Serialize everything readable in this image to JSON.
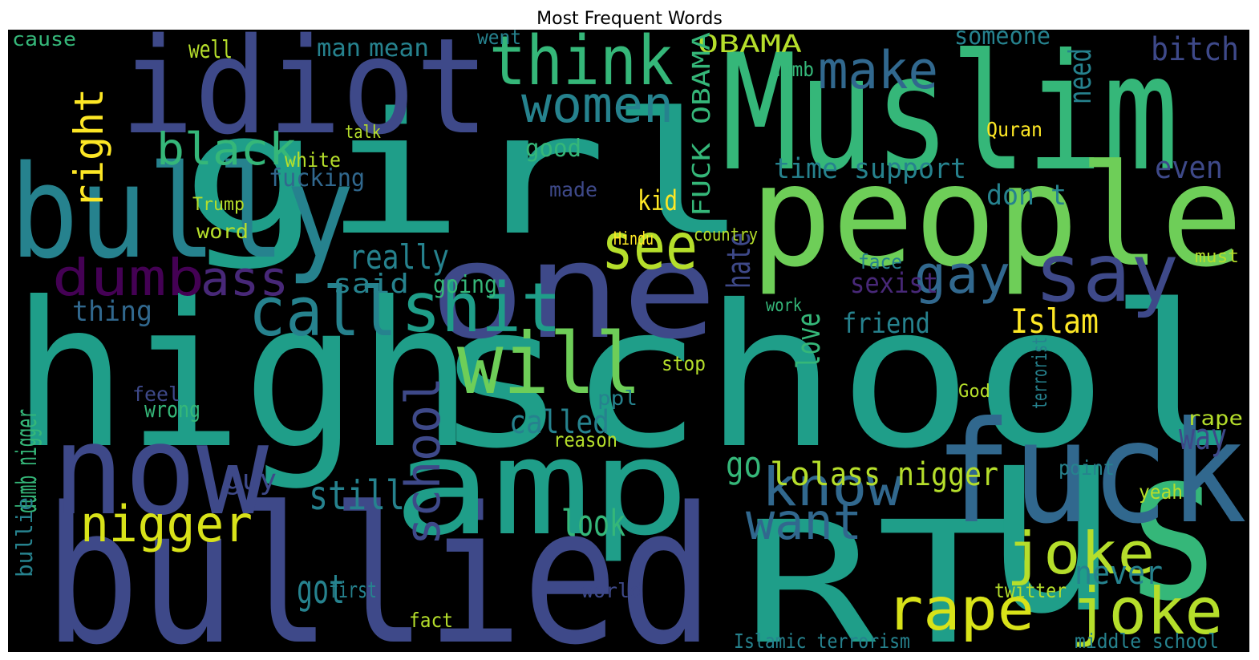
{
  "chart_data": {
    "type": "wordcloud",
    "title": "Most Frequent Words",
    "background": "#000000",
    "words": [
      "high",
      "school",
      "girl",
      "Muslim",
      "people",
      "bullied",
      "idiot",
      "bully",
      "one",
      "amp",
      "RT",
      "u",
      "s",
      "fuck",
      "now",
      "will",
      "shit",
      "call",
      "think",
      "women",
      "black",
      "see",
      "say",
      "gay",
      "make",
      "know",
      "want",
      "joke",
      "joke",
      "rape",
      "nigger",
      "dumb",
      "ass",
      "right",
      "school",
      "bitch",
      "still",
      "called",
      "really",
      "Islam",
      "dumb nigger",
      "ass nigger",
      "lol",
      "go",
      "sexist",
      "time support",
      "don t",
      "hate",
      "love",
      "friend",
      "got",
      "look",
      "way",
      "never",
      "even",
      "someone",
      "need",
      "OBAMA",
      "thing",
      "guy",
      "well",
      "cause",
      "kid",
      "middle school",
      "Islamic terrorism",
      "fucking",
      "white",
      "made",
      "said",
      "going",
      "good",
      "mean",
      "man",
      "went",
      "dumb",
      "word",
      "Trump",
      "fact",
      "first",
      "world",
      "face",
      "twitter",
      "rape",
      "FUCK OBAMA",
      "bullie",
      "reason",
      "point",
      "work",
      "Hindu",
      "country",
      "God",
      "stop",
      "wrong",
      "feel",
      "yeah",
      "must",
      "ppl",
      "terrorist",
      "Quran",
      "talk"
    ],
    "values": [
      250,
      245,
      210,
      200,
      175,
      235,
      165,
      160,
      165,
      165,
      210,
      330,
      260,
      175,
      155,
      105,
      85,
      85,
      85,
      62,
      55,
      80,
      100,
      65,
      65,
      66,
      62,
      72,
      80,
      73,
      62,
      63,
      60,
      50,
      60,
      40,
      50,
      40,
      42,
      42,
      35,
      40,
      40,
      45,
      35,
      35,
      35,
      40,
      40,
      35,
      50,
      45,
      45,
      40,
      38,
      30,
      38,
      30,
      35,
      35,
      30,
      24,
      35,
      25,
      25,
      30,
      25,
      25,
      33,
      30,
      30,
      30,
      30,
      25,
      25,
      25,
      22,
      25,
      28,
      25,
      25,
      25,
      25,
      30,
      28,
      25,
      25,
      22,
      22,
      22,
      22,
      25,
      28,
      25,
      25,
      22,
      25,
      25,
      25,
      22
    ],
    "colors": [
      "#1f9e89",
      "#1f9e89",
      "#1f9e89",
      "#35b779",
      "#6ece58",
      "#3e4989",
      "#3e4989",
      "#26828e",
      "#3e4989",
      "#1f9e89",
      "#1f9e89",
      "#1f9e89",
      "#35b779",
      "#31688e",
      "#3e4989",
      "#6ece58",
      "#1f9e89",
      "#26828e",
      "#35b779",
      "#26828e",
      "#35b779",
      "#b5de2b",
      "#3e4989",
      "#31688e",
      "#31688e",
      "#31688e",
      "#31688e",
      "#b5de2b",
      "#b5de2b",
      "#d8e219",
      "#d8e219",
      "#440154",
      "#482878",
      "#fde725",
      "#3e4989",
      "#3e4989",
      "#26828e",
      "#26828e",
      "#26828e",
      "#fde725",
      "#35b779",
      "#b5de2b",
      "#b5de2b",
      "#35b779",
      "#482878",
      "#26828e",
      "#26828e",
      "#3e4989",
      "#35b779",
      "#26828e",
      "#26828e",
      "#35b779",
      "#3e4989",
      "#26828e",
      "#3e4989",
      "#26828e",
      "#26828e",
      "#b5de2b",
      "#31688e",
      "#3e4989",
      "#b5de2b",
      "#35b779",
      "#fde725",
      "#26828e",
      "#26828e",
      "#31688e",
      "#b5de2b",
      "#3e4989",
      "#26828e",
      "#35b779",
      "#35b779",
      "#26828e",
      "#26828e",
      "#26828e",
      "#35b779",
      "#b5de2b",
      "#b5de2b",
      "#b5de2b",
      "#26828e",
      "#3e4989",
      "#26828e",
      "#b5de2b",
      "#b5de2b",
      "#35b779",
      "#26828e",
      "#b5de2b",
      "#26828e",
      "#35b779",
      "#fde725",
      "#b5de2b",
      "#b5de2b",
      "#b5de2b",
      "#35b779",
      "#3e4989",
      "#b5de2b",
      "#b5de2b",
      "#26828e",
      "#26828e",
      "#fde725",
      "#b5de2b"
    ]
  }
}
